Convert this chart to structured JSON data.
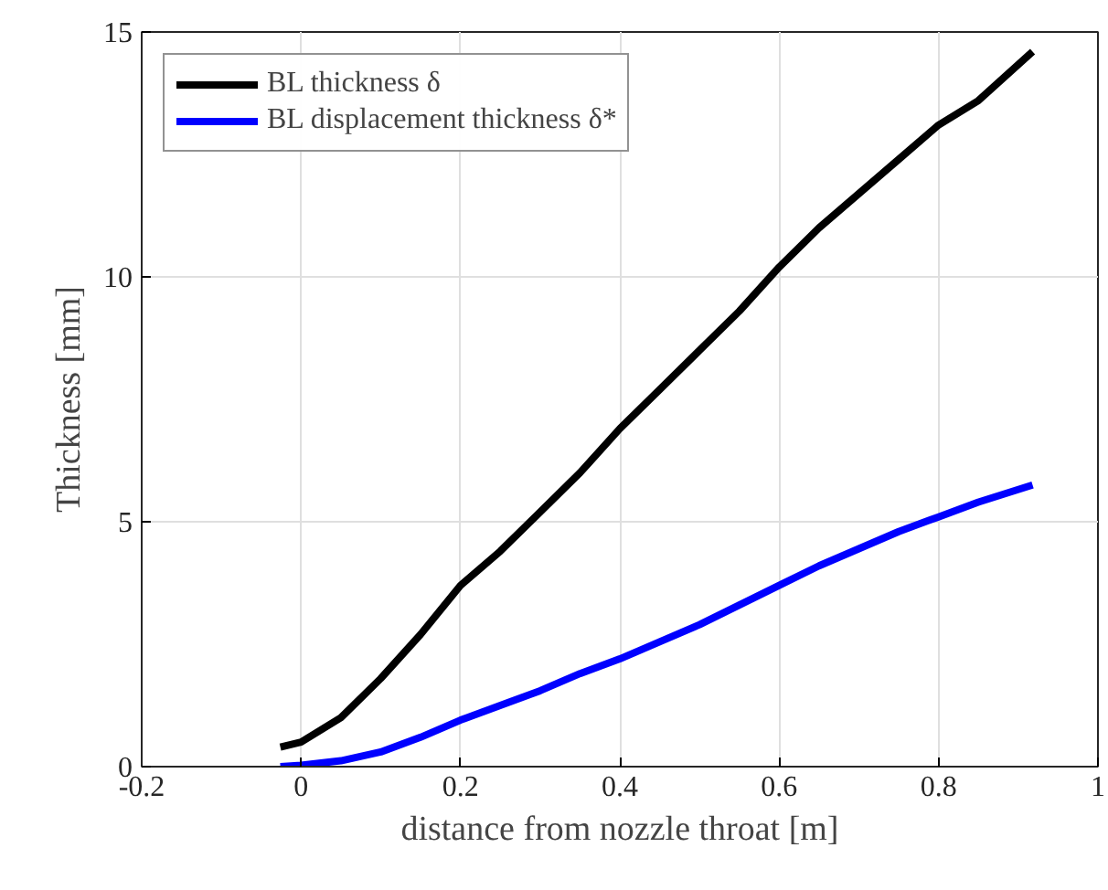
{
  "chart_data": {
    "type": "line",
    "xlabel": "distance from nozzle throat [m]",
    "ylabel": "Thickness [mm]",
    "xlim": [
      -0.2,
      1
    ],
    "xticks": [
      -0.2,
      0,
      0.2,
      0.4,
      0.6,
      0.8,
      1
    ],
    "ylim": [
      0,
      15
    ],
    "yticks": [
      0,
      5,
      10,
      15
    ],
    "grid": true,
    "legend": "top left",
    "marker": "none",
    "line_style": "solid",
    "x": [
      -0.026,
      0,
      0.05,
      0.1,
      0.15,
      0.2,
      0.25,
      0.3,
      0.35,
      0.4,
      0.45,
      0.5,
      0.55,
      0.6,
      0.65,
      0.7,
      0.75,
      0.8,
      0.85,
      0.918
    ],
    "series": [
      {
        "name": "BL thickness δ",
        "color": "#000000",
        "values": [
          0.4,
          0.5,
          1.0,
          1.8,
          2.7,
          3.7,
          4.4,
          5.2,
          6.0,
          6.9,
          7.7,
          8.5,
          9.3,
          10.2,
          11.0,
          11.7,
          12.4,
          13.1,
          13.6,
          14.6
        ]
      },
      {
        "name": "BL displacement thickness δ*",
        "color": "#0000ff",
        "values": [
          0,
          0.03,
          0.12,
          0.3,
          0.6,
          0.95,
          1.25,
          1.55,
          1.9,
          2.2,
          2.55,
          2.9,
          3.3,
          3.7,
          4.1,
          4.45,
          4.8,
          5.1,
          5.4,
          5.75
        ]
      }
    ]
  }
}
